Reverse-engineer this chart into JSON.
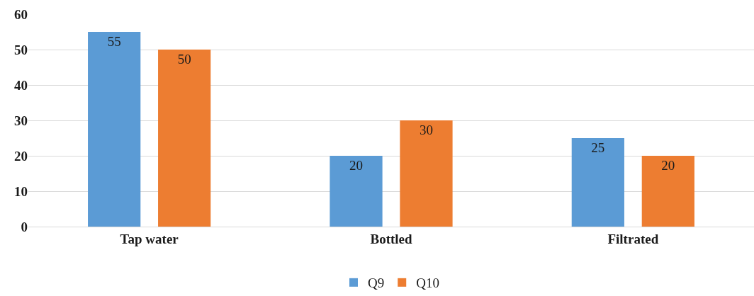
{
  "chart_data": {
    "type": "bar",
    "categories": [
      "Tap water",
      "Bottled",
      "Filtrated"
    ],
    "series": [
      {
        "name": "Q9",
        "color": "#5b9bd5",
        "values": [
          55,
          20,
          25
        ]
      },
      {
        "name": "Q10",
        "color": "#ed7d31",
        "values": [
          50,
          30,
          20
        ]
      }
    ],
    "ylim": [
      0,
      60
    ],
    "yticks": [
      0,
      10,
      20,
      30,
      40,
      50,
      60
    ],
    "grid": "y",
    "legend": "bottom",
    "data_labels": true
  }
}
